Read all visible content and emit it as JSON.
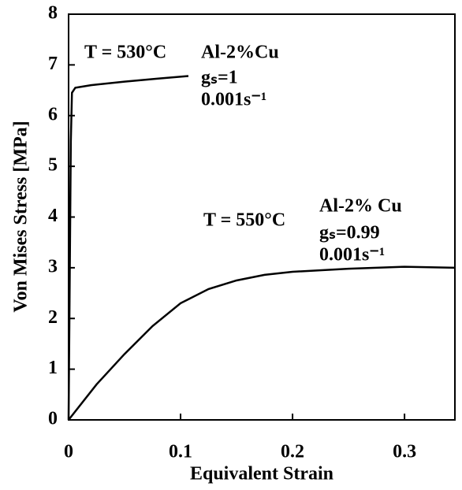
{
  "chart_data": {
    "type": "line",
    "xlabel": "Equivalent Strain",
    "ylabel": "Von Mises Stress  [MPa]",
    "xlim": [
      0,
      0.345
    ],
    "xticks": [
      0,
      0.1,
      0.2,
      0.3
    ],
    "ylim": [
      0,
      8
    ],
    "yticks": [
      0,
      1,
      2,
      3,
      4,
      5,
      6,
      7,
      8
    ],
    "color": "#000000",
    "series": [
      {
        "x": [
          0,
          0.002,
          0.003,
          0.006,
          0.02,
          0.05,
          0.08,
          0.107
        ],
        "values": [
          0,
          5.5,
          6.45,
          6.55,
          6.6,
          6.67,
          6.73,
          6.78
        ]
      },
      {
        "x": [
          0,
          0.025,
          0.05,
          0.075,
          0.1,
          0.125,
          0.15,
          0.175,
          0.2,
          0.25,
          0.3,
          0.345
        ],
        "values": [
          0,
          0.7,
          1.3,
          1.85,
          2.3,
          2.58,
          2.75,
          2.86,
          2.92,
          2.98,
          3.02,
          3.0
        ]
      }
    ],
    "annotations": [
      "T = 530°C",
      "Al-2%Cu",
      "gₛ=1",
      "0.001s⁻¹",
      "T = 550°C",
      "Al-2% Cu",
      "gₛ=0.99",
      "0.001s⁻¹"
    ]
  }
}
